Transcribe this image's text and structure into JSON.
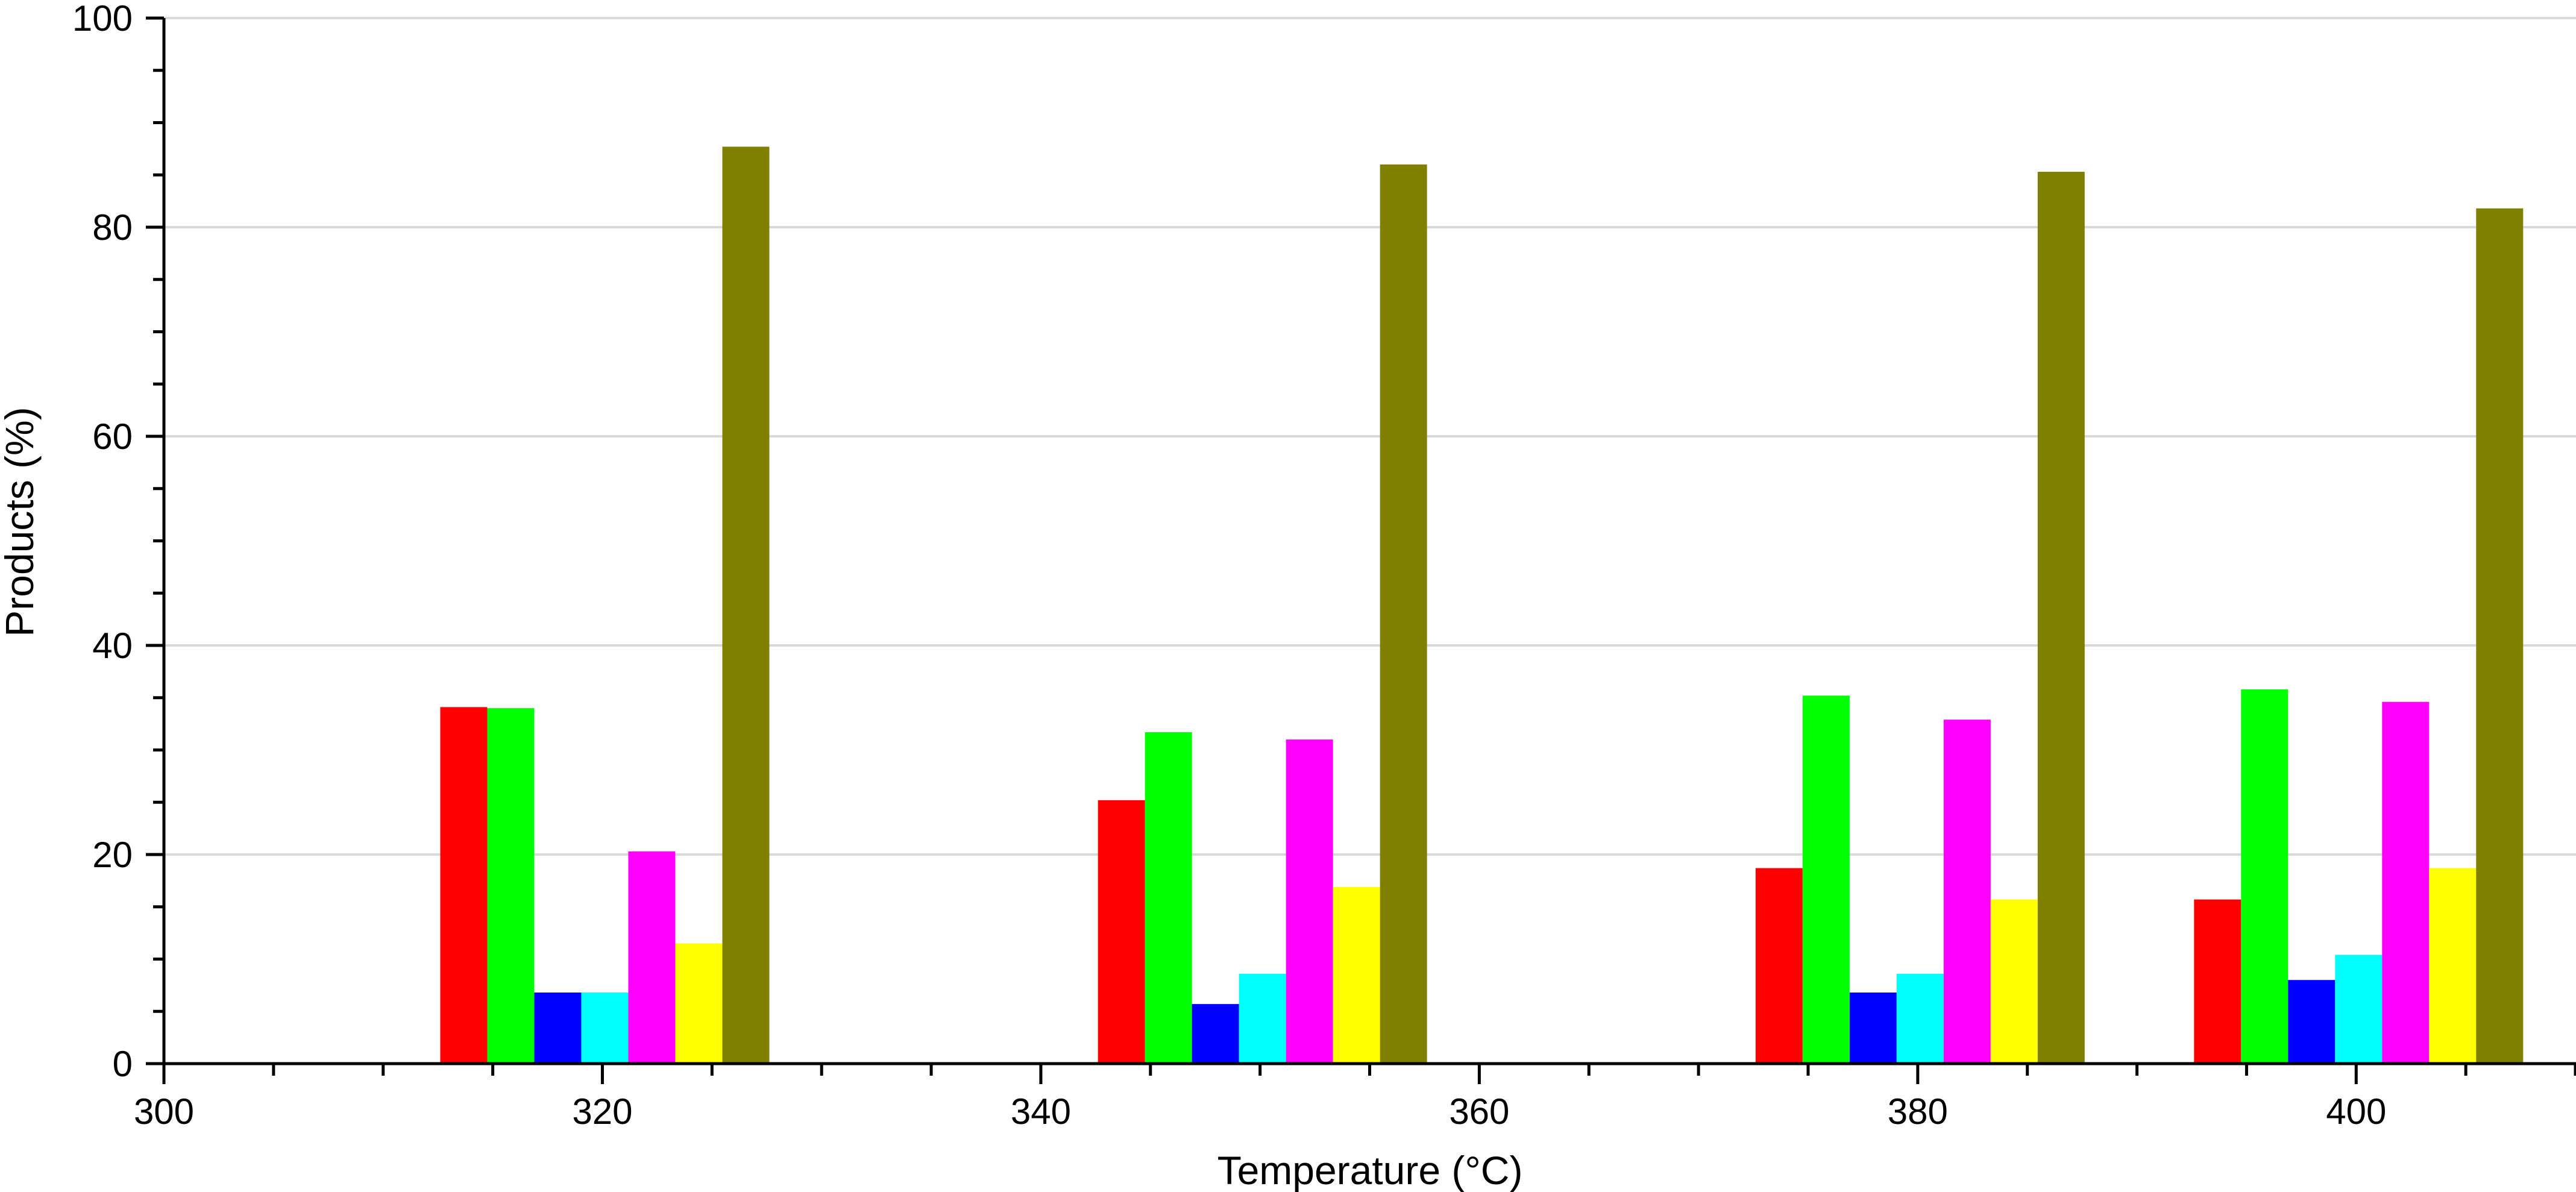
{
  "chart_data": {
    "type": "bar",
    "xlabel": "Temperature (°C)",
    "ylabel": "Products (%)",
    "xlim": [
      300,
      412
    ],
    "ylim": [
      0,
      100
    ],
    "xticks": [
      300,
      320,
      340,
      360,
      380,
      400
    ],
    "yticks": [
      0,
      20,
      40,
      60,
      80,
      100
    ],
    "grid": "horizontal",
    "legend": "none",
    "groups": [
      {
        "x": 320,
        "values": [
          34.1,
          34.0,
          6.8,
          6.8,
          20.3,
          11.5,
          87.7
        ]
      },
      {
        "x": 350,
        "values": [
          25.2,
          31.7,
          5.7,
          8.6,
          31.0,
          16.9,
          86.0
        ]
      },
      {
        "x": 380,
        "values": [
          18.7,
          35.2,
          6.8,
          8.6,
          32.9,
          15.7,
          85.3
        ]
      },
      {
        "x": 400,
        "values": [
          15.7,
          35.8,
          8.0,
          10.4,
          34.6,
          18.7,
          81.8
        ]
      }
    ],
    "series_colors": [
      "#ff0000",
      "#00ff00",
      "#0000ff",
      "#00ffff",
      "#ff00ff",
      "#ffff00",
      "#808000"
    ]
  }
}
